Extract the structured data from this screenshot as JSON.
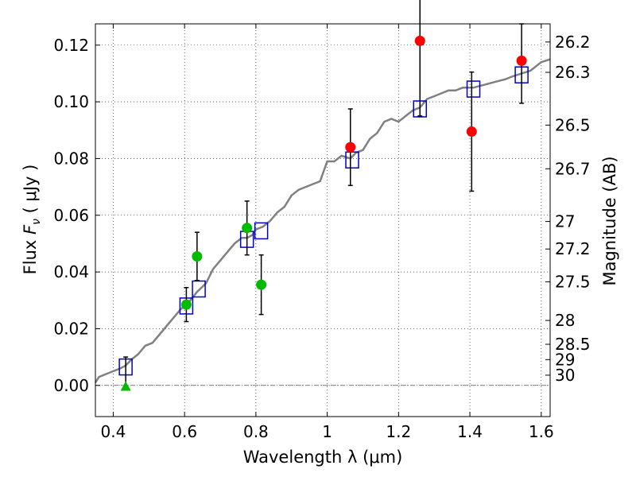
{
  "chart_data": {
    "type": "scatter",
    "xlabel": "Wavelength  λ (μm)",
    "ylabel_prefix": "Flux  ",
    "ylabel_var": "F",
    "ylabel_sub": "ν",
    "ylabel_suffix": "  ( μJy )",
    "ylabel_right": "Magnitude (AB)",
    "xlim": [
      0.35,
      1.625
    ],
    "ylim": [
      -0.011,
      0.1275
    ],
    "x_ticks": [
      0.4,
      0.6,
      0.8,
      1.0,
      1.2,
      1.4,
      1.6
    ],
    "x_tick_labels": [
      "0.4",
      "0.6",
      "0.8",
      "1",
      "1.2",
      "1.4",
      "1.6"
    ],
    "y_ticks": [
      0.0,
      0.02,
      0.04,
      0.06,
      0.08,
      0.1,
      0.12
    ],
    "y_tick_labels": [
      "0.00",
      "0.02",
      "0.04",
      "0.06",
      "0.08",
      "0.10",
      "0.12"
    ],
    "right_ticks": [
      {
        "label": "26.2",
        "flux": 0.1211
      },
      {
        "label": "26.3",
        "flux": 0.1104
      },
      {
        "label": "26.5",
        "flux": 0.0918
      },
      {
        "label": "26.7",
        "flux": 0.0764
      },
      {
        "label": "27",
        "flux": 0.0578
      },
      {
        "label": "27.2",
        "flux": 0.0481
      },
      {
        "label": "27.5",
        "flux": 0.0365
      },
      {
        "label": "28",
        "flux": 0.0229
      },
      {
        "label": "28.5",
        "flux": 0.0145
      },
      {
        "label": "29",
        "flux": 0.0091
      },
      {
        "label": "30",
        "flux": 0.0036
      }
    ],
    "grid": true,
    "colors": {
      "model": "#808080",
      "model_points": "#0000cc",
      "red_points": "#ff0000",
      "green_points": "#00bb00",
      "errorbars": "#000000"
    },
    "model_curve": [
      [
        0.35,
        0.001
      ],
      [
        0.36,
        0.003
      ],
      [
        0.38,
        0.004
      ],
      [
        0.4,
        0.005
      ],
      [
        0.42,
        0.006
      ],
      [
        0.435,
        0.007
      ],
      [
        0.45,
        0.009
      ],
      [
        0.47,
        0.011
      ],
      [
        0.49,
        0.014
      ],
      [
        0.51,
        0.015
      ],
      [
        0.53,
        0.018
      ],
      [
        0.55,
        0.021
      ],
      [
        0.57,
        0.024
      ],
      [
        0.59,
        0.027
      ],
      [
        0.61,
        0.029
      ],
      [
        0.635,
        0.033
      ],
      [
        0.66,
        0.036
      ],
      [
        0.68,
        0.041
      ],
      [
        0.7,
        0.044
      ],
      [
        0.72,
        0.047
      ],
      [
        0.74,
        0.05
      ],
      [
        0.76,
        0.052
      ],
      [
        0.775,
        0.052
      ],
      [
        0.79,
        0.053
      ],
      [
        0.8,
        0.055
      ],
      [
        0.82,
        0.056
      ],
      [
        0.84,
        0.058
      ],
      [
        0.86,
        0.061
      ],
      [
        0.88,
        0.063
      ],
      [
        0.9,
        0.067
      ],
      [
        0.92,
        0.069
      ],
      [
        0.94,
        0.07
      ],
      [
        0.96,
        0.071
      ],
      [
        0.98,
        0.072
      ],
      [
        1.0,
        0.079
      ],
      [
        1.02,
        0.079
      ],
      [
        1.04,
        0.081
      ],
      [
        1.065,
        0.08
      ],
      [
        1.08,
        0.082
      ],
      [
        1.1,
        0.083
      ],
      [
        1.12,
        0.087
      ],
      [
        1.14,
        0.089
      ],
      [
        1.16,
        0.093
      ],
      [
        1.18,
        0.094
      ],
      [
        1.2,
        0.093
      ],
      [
        1.22,
        0.095
      ],
      [
        1.24,
        0.097
      ],
      [
        1.26,
        0.098
      ],
      [
        1.28,
        0.101
      ],
      [
        1.3,
        0.102
      ],
      [
        1.32,
        0.103
      ],
      [
        1.34,
        0.104
      ],
      [
        1.36,
        0.104
      ],
      [
        1.38,
        0.105
      ],
      [
        1.41,
        0.105
      ],
      [
        1.44,
        0.106
      ],
      [
        1.47,
        0.107
      ],
      [
        1.5,
        0.108
      ],
      [
        1.52,
        0.109
      ],
      [
        1.545,
        0.11
      ],
      [
        1.57,
        0.111
      ],
      [
        1.6,
        0.114
      ],
      [
        1.625,
        0.115
      ]
    ],
    "model_points": [
      {
        "x": 0.435,
        "y": 0.0065
      },
      {
        "x": 0.605,
        "y": 0.028
      },
      {
        "x": 0.64,
        "y": 0.034
      },
      {
        "x": 0.775,
        "y": 0.0515
      },
      {
        "x": 0.815,
        "y": 0.0545
      },
      {
        "x": 1.07,
        "y": 0.0795
      },
      {
        "x": 1.26,
        "y": 0.0975
      },
      {
        "x": 1.41,
        "y": 0.1045
      },
      {
        "x": 1.545,
        "y": 0.1095
      }
    ],
    "red_points": [
      {
        "x": 1.065,
        "y": 0.084,
        "yerr_low": 0.0135,
        "yerr_high": 0.0135
      },
      {
        "x": 1.26,
        "y": 0.1215,
        "yerr_low": 0.0265,
        "yerr_high": 0.016
      },
      {
        "x": 1.405,
        "y": 0.0895,
        "yerr_low": 0.021,
        "yerr_high": 0.021
      },
      {
        "x": 1.545,
        "y": 0.1145,
        "yerr_low": 0.015,
        "yerr_high": 0.013
      }
    ],
    "green_points": [
      {
        "x": 0.605,
        "y": 0.0285,
        "yerr_low": 0.006,
        "yerr_high": 0.006
      },
      {
        "x": 0.635,
        "y": 0.0455,
        "yerr_low": 0.0085,
        "yerr_high": 0.0085
      },
      {
        "x": 0.775,
        "y": 0.0555,
        "yerr_low": 0.0095,
        "yerr_high": 0.0095
      },
      {
        "x": 0.815,
        "y": 0.0355,
        "yerr_low": 0.0105,
        "yerr_high": 0.0105
      }
    ],
    "green_upper_limits": [
      {
        "x": 0.435,
        "y": -0.0005,
        "yerr_high": 0.0105
      }
    ]
  }
}
